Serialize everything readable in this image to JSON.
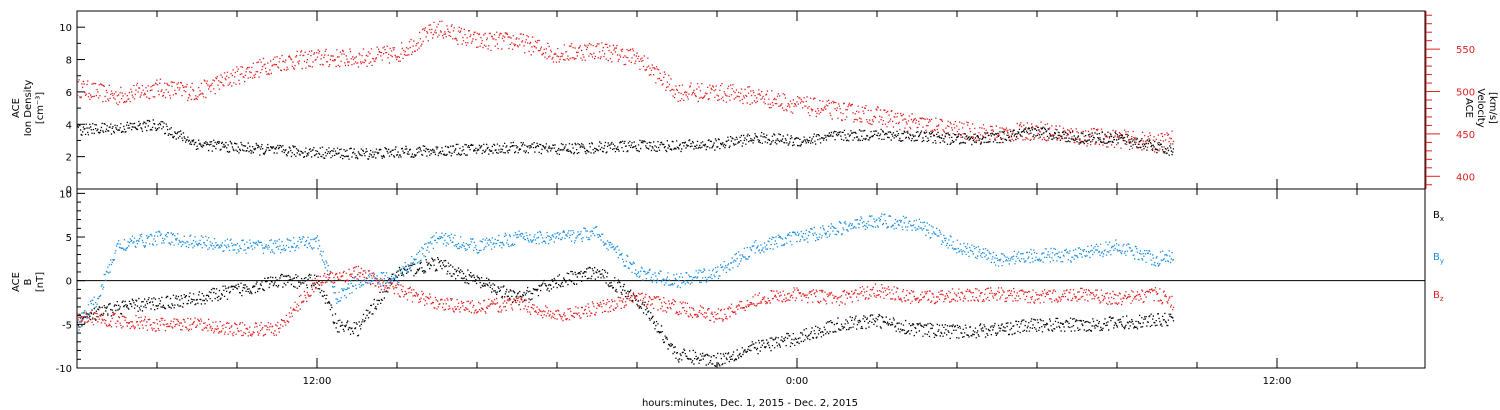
{
  "xaxis": {
    "label": "hours:minutes, Dec.  1, 2015 - Dec.  2, 2015",
    "ticks": [
      {
        "h": 12,
        "label": "12:00"
      },
      {
        "h": 24,
        "label": "0:00"
      },
      {
        "h": 36,
        "label": "12:00"
      }
    ],
    "range_hours": [
      6,
      39.7
    ]
  },
  "chart_data": [
    {
      "type": "scatter",
      "panel": "top",
      "ylabel_left": [
        "ACE",
        "Ion Density",
        "[cm⁻³]"
      ],
      "ylabel_right": [
        "ACE",
        "Velocity",
        "[km/s]"
      ],
      "ylim_left": [
        0,
        11
      ],
      "ylim_right": [
        385,
        595
      ],
      "yticks_left": [
        0,
        2,
        4,
        6,
        8,
        10
      ],
      "yticks_right": [
        400,
        450,
        500,
        550
      ],
      "series": [
        {
          "name": "",
          "axis": "left",
          "color": "#000000",
          "x": [
            6.0,
            7.0,
            8.0,
            9.0,
            10.0,
            11.0,
            12.0,
            13.0,
            14.0,
            15.0,
            16.0,
            17.0,
            18.0,
            19.0,
            20.0,
            21.0,
            22.0,
            23.0,
            24.0,
            25.0,
            26.0,
            27.0,
            28.0,
            29.0,
            30.0,
            31.0,
            32.0,
            33.0,
            33.4
          ],
          "y": [
            3.7,
            3.8,
            4.0,
            2.8,
            2.6,
            2.4,
            2.3,
            2.2,
            2.3,
            2.4,
            2.5,
            2.6,
            2.5,
            2.6,
            2.7,
            2.7,
            2.8,
            3.2,
            3.0,
            3.3,
            3.4,
            3.3,
            3.1,
            3.2,
            3.6,
            3.2,
            3.2,
            2.6,
            2.3
          ]
        },
        {
          "name": "",
          "axis": "right",
          "color": "#e02020",
          "x": [
            6.0,
            7.0,
            8.0,
            9.0,
            10.0,
            11.0,
            12.0,
            13.0,
            14.0,
            15.0,
            16.0,
            17.0,
            18.0,
            19.0,
            20.0,
            21.0,
            22.0,
            23.0,
            24.0,
            25.0,
            26.0,
            27.0,
            28.0,
            29.0,
            30.0,
            31.0,
            32.0,
            33.0,
            33.4
          ],
          "y": [
            505,
            495,
            505,
            500,
            520,
            535,
            540,
            540,
            545,
            575,
            560,
            560,
            545,
            550,
            540,
            500,
            500,
            495,
            485,
            478,
            472,
            462,
            455,
            450,
            455,
            448,
            445,
            440,
            445
          ]
        }
      ]
    },
    {
      "type": "scatter",
      "panel": "bottom",
      "ylabel_left": [
        "ACE",
        "B",
        "[nT]"
      ],
      "ylim": [
        -10,
        10.5
      ],
      "yticks": [
        -10,
        -5,
        0,
        5,
        10
      ],
      "legend": "right",
      "series": [
        {
          "name": "Bx",
          "color": "#000000",
          "x": [
            6.0,
            7.0,
            8.0,
            9.0,
            10.0,
            11.0,
            12.0,
            12.5,
            13.0,
            14.0,
            15.0,
            16.0,
            17.0,
            18.0,
            19.0,
            20.0,
            21.0,
            22.0,
            23.0,
            24.0,
            25.0,
            26.0,
            27.0,
            28.0,
            29.0,
            30.0,
            31.0,
            32.0,
            33.0,
            33.4
          ],
          "y": [
            -4.5,
            -3.0,
            -2.5,
            -2.0,
            -1.0,
            0.0,
            0.0,
            -5.0,
            -5.5,
            1.0,
            2.0,
            0.0,
            -2.0,
            0.0,
            1.0,
            -2.0,
            -8.5,
            -9.0,
            -7.5,
            -6.5,
            -5.0,
            -4.5,
            -5.5,
            -5.8,
            -5.5,
            -5.0,
            -5.0,
            -4.8,
            -4.5,
            -4.3
          ]
        },
        {
          "name": "By",
          "color": "#1e8fe0",
          "x": [
            6.0,
            6.5,
            7.0,
            8.0,
            9.0,
            10.0,
            11.0,
            12.0,
            12.5,
            13.0,
            14.0,
            15.0,
            16.0,
            17.0,
            18.0,
            19.0,
            20.0,
            21.0,
            22.0,
            23.0,
            24.0,
            25.0,
            26.0,
            27.0,
            28.0,
            29.0,
            30.0,
            31.0,
            32.0,
            33.0,
            33.4
          ],
          "y": [
            -5.0,
            -2.0,
            4.0,
            5.0,
            4.5,
            4.0,
            4.0,
            4.5,
            -2.0,
            0.0,
            0.5,
            5.0,
            4.0,
            5.0,
            5.0,
            5.5,
            1.0,
            0.0,
            1.0,
            4.0,
            5.0,
            6.0,
            7.0,
            6.5,
            4.0,
            2.5,
            3.0,
            3.0,
            4.0,
            2.5,
            3.0
          ]
        },
        {
          "name": "Bz",
          "color": "#e02020",
          "x": [
            6.0,
            7.0,
            8.0,
            9.0,
            10.0,
            11.0,
            12.0,
            13.0,
            14.0,
            15.0,
            16.0,
            17.0,
            18.0,
            19.0,
            20.0,
            21.0,
            22.0,
            23.0,
            24.0,
            25.0,
            26.0,
            27.0,
            28.0,
            29.0,
            30.0,
            31.0,
            32.0,
            33.0,
            33.4
          ],
          "y": [
            -4.0,
            -4.5,
            -5.0,
            -5.0,
            -5.5,
            -5.5,
            0.0,
            1.0,
            -1.0,
            -2.5,
            -3.0,
            -2.5,
            -4.0,
            -3.0,
            -2.0,
            -3.0,
            -4.0,
            -2.0,
            -1.5,
            -2.0,
            -1.0,
            -2.0,
            -1.5,
            -1.5,
            -1.8,
            -1.5,
            -2.0,
            -1.5,
            -2.5
          ]
        }
      ]
    }
  ]
}
